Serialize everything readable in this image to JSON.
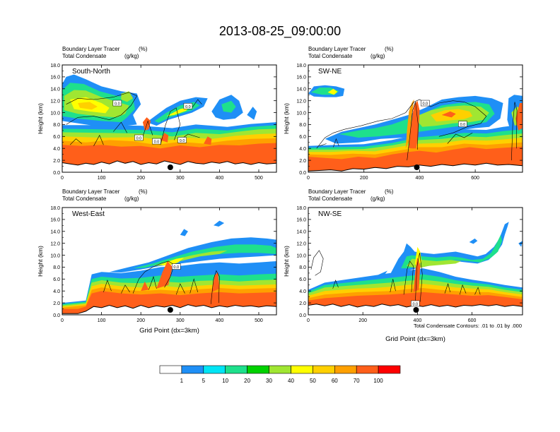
{
  "title": "2013-08-25_09:00:00",
  "colors": [
    "#ffffff",
    "#1f8ff6",
    "#00e5f5",
    "#1ee08c",
    "#00d200",
    "#a0e632",
    "#ffff00",
    "#ffd000",
    "#ffa000",
    "#ff5f1a",
    "#ff0000"
  ],
  "colorbar": {
    "labels": [
      "1",
      "5",
      "10",
      "20",
      "30",
      "40",
      "50",
      "60",
      "70",
      "100"
    ]
  },
  "contour_note": "Total Condensate Contours: .01 to .01 by .000",
  "chart_data": [
    {
      "type": "heatmap",
      "id": "sn",
      "name": "South-North",
      "subtitle_line1": "Boundary Layer Tracer",
      "subtitle_unit1": "(%)",
      "subtitle_line2": "Total Condensate",
      "subtitle_unit2": "(g/kg)",
      "ylabel": "Height (km)",
      "xlabel": "",
      "xlim": [
        0,
        545
      ],
      "ylim": [
        0,
        18
      ],
      "xticks": [
        0,
        100,
        200,
        300,
        400,
        500
      ],
      "yticks": [
        "0.0",
        "2.0",
        "4.0",
        "6.0",
        "8.0",
        "10.0",
        "12.0",
        "14.0",
        "16.0",
        "18.0"
      ],
      "marker_x": 275,
      "contour_labels": [
        {
          "x": 140,
          "y": 11.6,
          "text": "0.0"
        },
        {
          "x": 320,
          "y": 11.1,
          "text": "0.0"
        },
        {
          "x": 195,
          "y": 5.8,
          "text": "0.0"
        },
        {
          "x": 240,
          "y": 5.2,
          "text": "0.0"
        },
        {
          "x": 305,
          "y": 5.4,
          "text": "0.0"
        }
      ]
    },
    {
      "type": "heatmap",
      "id": "swne",
      "name": "SW-NE",
      "subtitle_line1": "Boundary Layer Tracer",
      "subtitle_unit1": "(%)",
      "subtitle_line2": "Total Condensate",
      "subtitle_unit2": "(g/kg)",
      "ylabel": "Height (km)",
      "xlabel": "",
      "xlim": [
        0,
        770
      ],
      "ylim": [
        0,
        18
      ],
      "xticks": [
        0,
        200,
        400,
        600
      ],
      "yticks": [
        "0.0",
        "2.0",
        "4.0",
        "6.0",
        "8.0",
        "10.0",
        "12.0",
        "14.0",
        "16.0",
        "18.0"
      ],
      "marker_x": 390,
      "contour_labels": [
        {
          "x": 420,
          "y": 11.6,
          "text": "0.0"
        },
        {
          "x": 555,
          "y": 8.1,
          "text": "0.0"
        }
      ]
    },
    {
      "type": "heatmap",
      "id": "we",
      "name": "West-East",
      "subtitle_line1": "Boundary Layer Tracer",
      "subtitle_unit1": "(%)",
      "subtitle_line2": "Total Condensate",
      "subtitle_unit2": "(g/kg)",
      "ylabel": "Height (km)",
      "xlabel": "Grid Point (dx=3km)",
      "xlim": [
        0,
        545
      ],
      "ylim": [
        0,
        18
      ],
      "xticks": [
        0,
        100,
        200,
        300,
        400,
        500
      ],
      "yticks": [
        "0.0",
        "2.0",
        "4.0",
        "6.0",
        "8.0",
        "10.0",
        "12.0",
        "14.0",
        "16.0",
        "18.0"
      ],
      "marker_x": 275,
      "contour_labels": [
        {
          "x": 290,
          "y": 8.1,
          "text": "0.0"
        }
      ]
    },
    {
      "type": "heatmap",
      "id": "nwse",
      "name": "NW-SE",
      "subtitle_line1": "Boundary Layer Tracer",
      "subtitle_unit1": "(%)",
      "subtitle_line2": "Total Condensate",
      "subtitle_unit2": "(g/kg)",
      "ylabel": "Height (km)",
      "xlabel": "Grid Point (dx=3km)",
      "xlim": [
        0,
        785
      ],
      "ylim": [
        0,
        18
      ],
      "xticks": [
        0,
        200,
        400,
        600
      ],
      "yticks": [
        "0.0",
        "2.0",
        "4.0",
        "6.0",
        "8.0",
        "10.0",
        "12.0",
        "14.0",
        "16.0",
        "18.0"
      ],
      "marker_x": 395,
      "contour_labels": [
        {
          "x": 392,
          "y": 1.9,
          "text": "0.0"
        }
      ]
    }
  ]
}
